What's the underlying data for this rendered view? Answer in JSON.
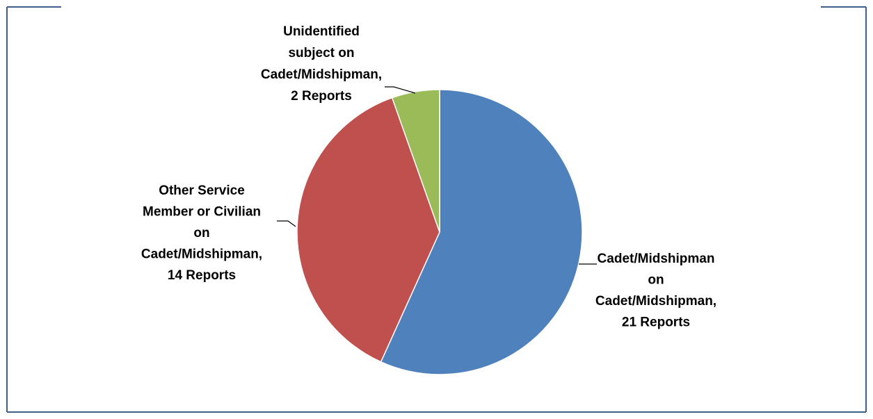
{
  "chart_data": {
    "type": "pie",
    "values": [
      21,
      14,
      2
    ],
    "value_labels": [
      [
        "Cadet/Midshipman",
        "on",
        "Cadet/Midshipman,",
        "21 Reports"
      ],
      [
        "Other Service",
        "Member or Civilian",
        "on",
        "Cadet/Midshipman,",
        "14 Reports"
      ],
      [
        "Unidentified",
        "subject on",
        "Cadet/Midshipman,",
        "2 Reports"
      ]
    ],
    "colors": [
      "#4f81bd",
      "#c0504d",
      "#9bbb59"
    ]
  }
}
